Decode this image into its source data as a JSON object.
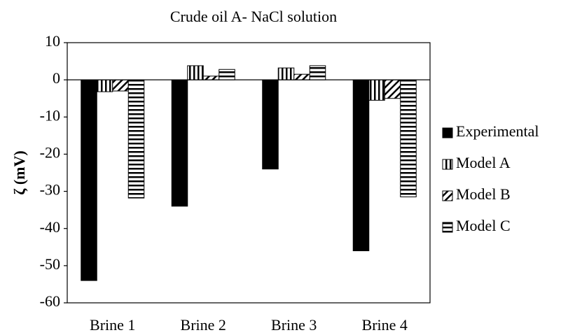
{
  "chart_data": {
    "type": "bar",
    "title": "Crude oil A- NaCl solution",
    "y_label": "ζ (mV)",
    "categories": [
      "Brine 1",
      "Brine 2",
      "Brine 3",
      "Brine 4"
    ],
    "series": [
      {
        "name": "Experimental",
        "color": "#000000",
        "pattern": "solid",
        "values": [
          -54,
          -34,
          -24,
          -46
        ]
      },
      {
        "name": "Model A",
        "color": "#000000",
        "pattern": "vertical",
        "values": [
          -3.2,
          3.8,
          3.2,
          -5.5
        ]
      },
      {
        "name": "Model B",
        "color": "#000000",
        "pattern": "diagonal",
        "values": [
          -3,
          1,
          1.5,
          -5
        ]
      },
      {
        "name": "Model C",
        "color": "#000000",
        "pattern": "horizontal",
        "values": [
          -31.8,
          2.8,
          3.8,
          -31.5
        ]
      }
    ],
    "ylim": [
      -60,
      10
    ],
    "yticks": [
      -60,
      -50,
      -40,
      -30,
      -20,
      -10,
      0,
      10
    ],
    "grid": false,
    "legend": "right"
  }
}
